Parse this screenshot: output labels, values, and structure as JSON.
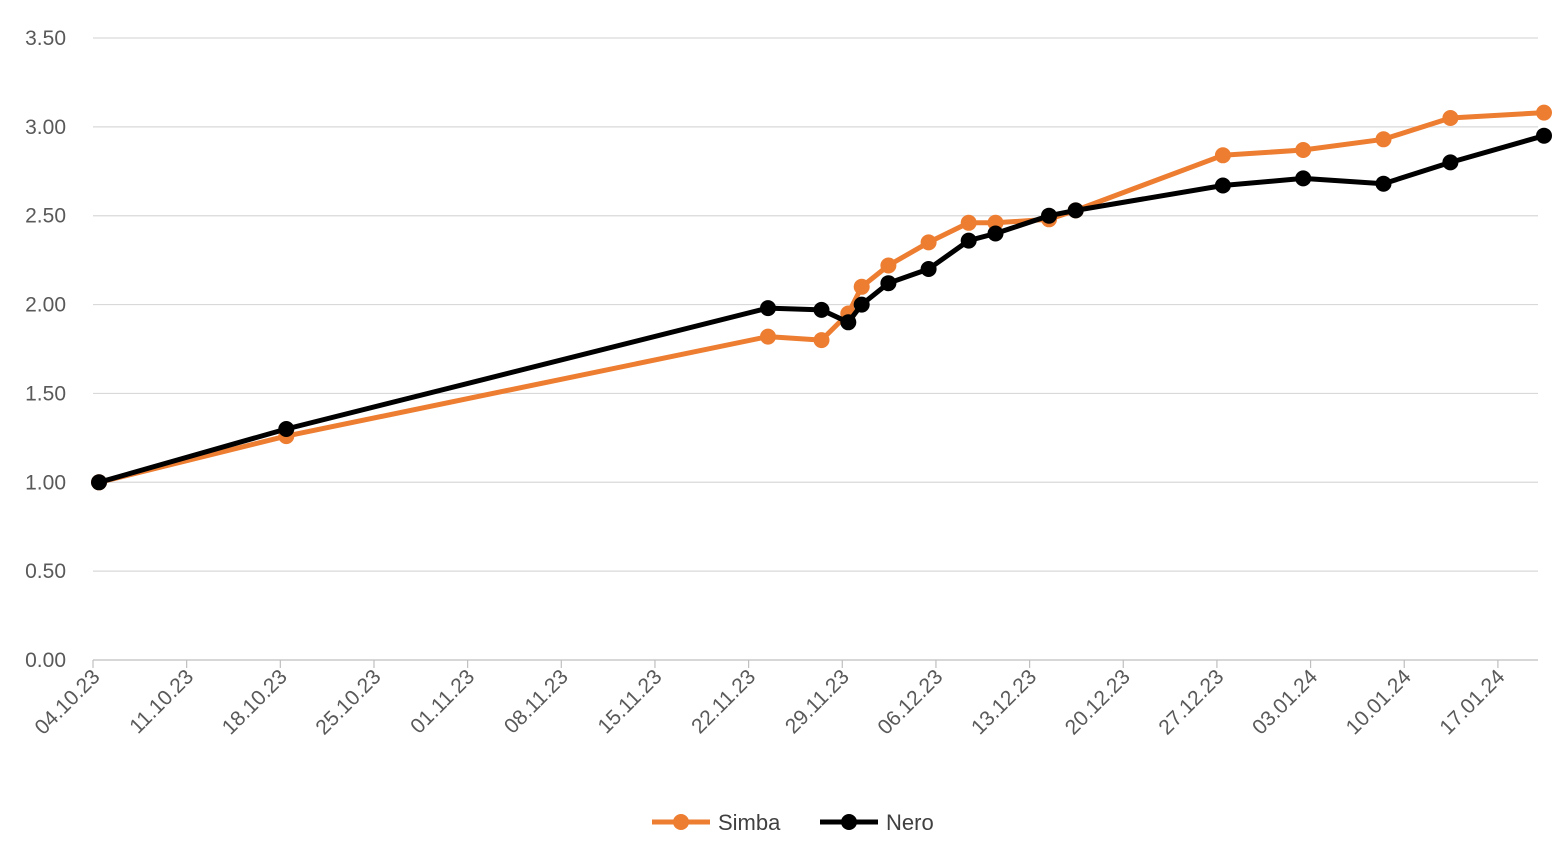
{
  "chart_data": {
    "type": "line",
    "title": "",
    "xlabel": "",
    "ylabel": "",
    "ylim": [
      0,
      3.5
    ],
    "yticks": [
      "0.00",
      "0.50",
      "1.00",
      "1.50",
      "2.00",
      "2.50",
      "3.00",
      "3.50"
    ],
    "xticks": [
      "04.10.23",
      "11.10.23",
      "18.10.23",
      "25.10.23",
      "01.11.23",
      "08.11.23",
      "15.11.23",
      "22.11.23",
      "29.11.23",
      "06.12.23",
      "13.12.23",
      "20.12.23",
      "27.12.23",
      "03.01.24",
      "10.01.24",
      "17.01.24"
    ],
    "grid": true,
    "legend": "bottom",
    "series": [
      {
        "name": "Simba",
        "color": "#ed7d31",
        "points": [
          [
            "04.10.23",
            1.0
          ],
          [
            "18.10.23",
            1.26
          ],
          [
            "23.11.23",
            1.82
          ],
          [
            "27.11.23",
            1.8
          ],
          [
            "29.11.23",
            1.95
          ],
          [
            "30.11.23",
            2.1
          ],
          [
            "02.12.23",
            2.22
          ],
          [
            "05.12.23",
            2.35
          ],
          [
            "08.12.23",
            2.46
          ],
          [
            "10.12.23",
            2.46
          ],
          [
            "14.12.23",
            2.48
          ],
          [
            "16.12.23",
            2.53
          ],
          [
            "27.12.23",
            2.84
          ],
          [
            "02.01.24",
            2.87
          ],
          [
            "08.01.24",
            2.93
          ],
          [
            "13.01.24",
            3.05
          ],
          [
            "20.01.24",
            3.08
          ]
        ]
      },
      {
        "name": "Nero",
        "color": "#000000",
        "points": [
          [
            "04.10.23",
            1.0
          ],
          [
            "18.10.23",
            1.3
          ],
          [
            "23.11.23",
            1.98
          ],
          [
            "27.11.23",
            1.97
          ],
          [
            "29.11.23",
            1.9
          ],
          [
            "30.11.23",
            2.0
          ],
          [
            "02.12.23",
            2.12
          ],
          [
            "05.12.23",
            2.2
          ],
          [
            "08.12.23",
            2.36
          ],
          [
            "10.12.23",
            2.4
          ],
          [
            "14.12.23",
            2.5
          ],
          [
            "16.12.23",
            2.53
          ],
          [
            "27.12.23",
            2.67
          ],
          [
            "02.01.24",
            2.71
          ],
          [
            "08.01.24",
            2.68
          ],
          [
            "13.01.24",
            2.8
          ],
          [
            "20.01.24",
            2.95
          ]
        ]
      }
    ]
  }
}
